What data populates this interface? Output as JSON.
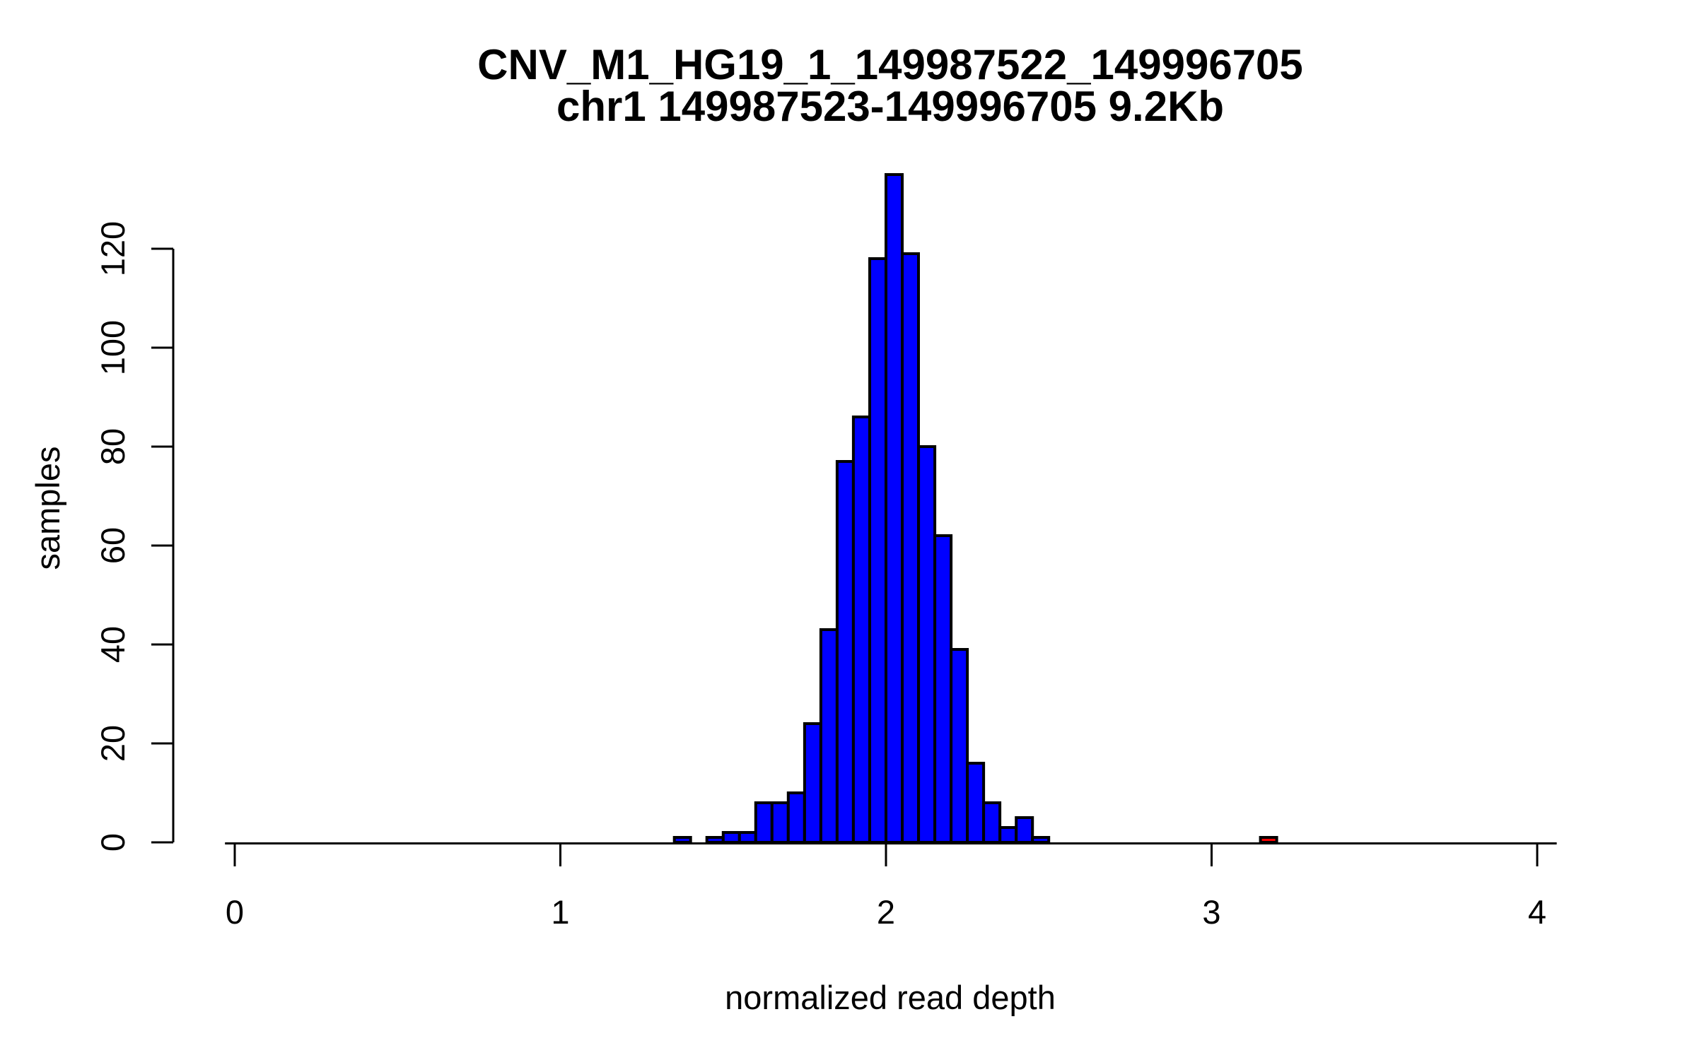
{
  "figure": {
    "title_line1": "CNV_M1_HG19_1_149987522_149996705",
    "title_line2": "chr1 149987523-149996705 9.2Kb",
    "background_color": "#FFFFFF",
    "text_color": "#000000"
  },
  "chart_data": {
    "type": "bar",
    "variant": "histogram",
    "title": "CNV_M1_HG19_1_149987522_149996705",
    "subtitle": "chr1 149987523-149996705 9.2Kb",
    "xlabel": "normalized read depth",
    "ylabel": "samples",
    "x_ticks": [
      0,
      1,
      2,
      3,
      4
    ],
    "y_ticks": [
      0,
      20,
      40,
      60,
      80,
      100,
      120
    ],
    "xlim": [
      -0.03,
      4.06
    ],
    "ylim": [
      0,
      135
    ],
    "grid": false,
    "legend": false,
    "bin_width": 0.05,
    "bar_fill_color": "#0000FF",
    "outlier_fill_color": "#FF0000",
    "bar_border_color": "#000000",
    "bins": [
      {
        "start": 1.35,
        "count": 1
      },
      {
        "start": 1.4,
        "count": 0
      },
      {
        "start": 1.45,
        "count": 1
      },
      {
        "start": 1.5,
        "count": 2
      },
      {
        "start": 1.55,
        "count": 2
      },
      {
        "start": 1.6,
        "count": 8
      },
      {
        "start": 1.65,
        "count": 8
      },
      {
        "start": 1.7,
        "count": 10
      },
      {
        "start": 1.75,
        "count": 24
      },
      {
        "start": 1.8,
        "count": 43
      },
      {
        "start": 1.85,
        "count": 77
      },
      {
        "start": 1.9,
        "count": 86
      },
      {
        "start": 1.95,
        "count": 118
      },
      {
        "start": 2.0,
        "count": 135
      },
      {
        "start": 2.05,
        "count": 119
      },
      {
        "start": 2.1,
        "count": 80
      },
      {
        "start": 2.15,
        "count": 62
      },
      {
        "start": 2.2,
        "count": 39
      },
      {
        "start": 2.25,
        "count": 16
      },
      {
        "start": 2.3,
        "count": 8
      },
      {
        "start": 2.35,
        "count": 3
      },
      {
        "start": 2.4,
        "count": 5
      },
      {
        "start": 2.45,
        "count": 1
      },
      {
        "start": 3.15,
        "count": 1,
        "color": "#FF0000"
      }
    ]
  }
}
